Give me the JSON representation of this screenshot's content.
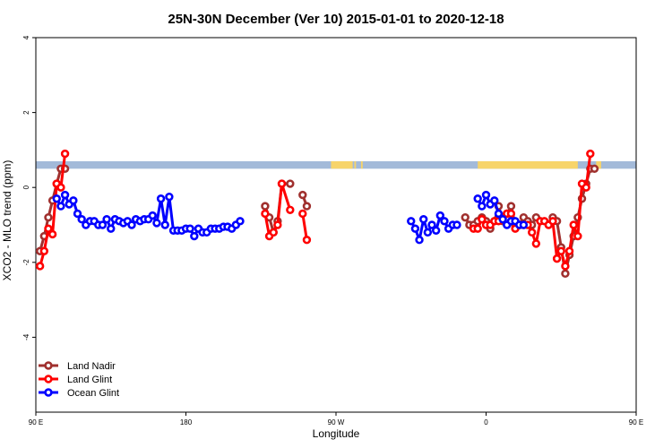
{
  "chart_data": {
    "type": "line",
    "title": "25N-30N December (Ver 10)   2015-01-01 to 2020-12-18",
    "xlabel": "Longitude",
    "ylabel": "XCO2 - MLO trend (ppm)",
    "xlim": [
      90,
      450
    ],
    "ylim": [
      -6,
      4
    ],
    "x_ticks": [
      {
        "value": 90,
        "label": "90 E"
      },
      {
        "value": 180,
        "label": "180"
      },
      {
        "value": 270,
        "label": "90 W"
      },
      {
        "value": 360,
        "label": "0"
      },
      {
        "value": 450,
        "label": "90 E"
      },
      {
        "value": 540,
        "label": "180"
      }
    ],
    "y_ticks": [
      {
        "value": -4,
        "label": "-4"
      },
      {
        "value": -2,
        "label": "-2"
      },
      {
        "value": 0,
        "label": "0"
      },
      {
        "value": 2,
        "label": "2"
      },
      {
        "value": 4,
        "label": "4"
      }
    ],
    "grid": false,
    "legend_position": "bottom-left",
    "land_band": {
      "y_range": [
        0.5,
        0.7
      ],
      "ocean_color": "#a3bad9",
      "land_color": "#f7d46a",
      "land_segments": [
        [
          267,
          280
        ],
        [
          281,
          282
        ],
        [
          285,
          286
        ],
        [
          355,
          415
        ],
        [
          426,
          429
        ],
        [
          450,
          452
        ]
      ]
    },
    "series": [
      {
        "name": "Land Nadir",
        "color": "#a0302e",
        "points": [
          [
            92.5,
            -1.7
          ],
          [
            95,
            -1.3
          ],
          [
            97.5,
            -0.8
          ],
          [
            100,
            -0.35
          ],
          [
            102.5,
            0.1
          ],
          [
            105,
            0.5
          ],
          [
            107.5,
            0.5
          ],
          null,
          [
            227.5,
            -0.5
          ],
          [
            230,
            -0.8
          ],
          [
            232.5,
            -1.2
          ],
          [
            235,
            -0.9
          ],
          [
            237.5,
            0.1
          ],
          [
            242.5,
            0.1
          ],
          null,
          [
            250,
            -0.2
          ],
          [
            252.5,
            -0.5
          ],
          null,
          [
            347.5,
            -0.8
          ],
          [
            350,
            -1.0
          ],
          [
            352.5,
            -1.0
          ],
          [
            355,
            -0.9
          ],
          [
            357.5,
            -0.8
          ],
          [
            360,
            -0.9
          ],
          [
            362.5,
            -1.1
          ],
          [
            365,
            -0.9
          ],
          [
            367.5,
            -0.5
          ],
          [
            370,
            -0.9
          ],
          [
            372.5,
            -0.7
          ],
          [
            375,
            -0.5
          ],
          [
            377.5,
            -1.0
          ],
          [
            380,
            -1.0
          ],
          [
            382.5,
            -0.8
          ],
          [
            385,
            -0.9
          ],
          [
            387.5,
            -1.0
          ],
          [
            390,
            -0.8
          ],
          null,
          [
            400,
            -0.8
          ],
          [
            402.5,
            -0.9
          ],
          [
            405,
            -1.6
          ],
          [
            407.5,
            -2.3
          ],
          [
            410,
            -1.8
          ],
          [
            412.5,
            -1.3
          ],
          [
            415,
            -0.8
          ],
          [
            417.5,
            -0.3
          ],
          [
            420,
            0.1
          ],
          [
            422.5,
            0.5
          ],
          [
            425,
            0.5
          ]
        ]
      },
      {
        "name": "Land Glint",
        "color": "#ff0000",
        "points": [
          [
            92.5,
            -2.1
          ],
          [
            95,
            -1.7
          ],
          [
            97.5,
            -1.1
          ],
          [
            100,
            -1.25
          ],
          [
            102.5,
            0.1
          ],
          [
            105,
            0.0
          ],
          [
            107.5,
            0.9
          ],
          null,
          [
            227.5,
            -0.7
          ],
          [
            230,
            -1.3
          ],
          [
            232.5,
            -1.2
          ],
          [
            235,
            -1.0
          ],
          [
            237.5,
            0.1
          ],
          [
            242.5,
            -0.6
          ],
          null,
          [
            250,
            -0.7
          ],
          [
            252.5,
            -1.4
          ],
          null,
          [
            352.5,
            -1.1
          ],
          [
            355,
            -1.1
          ],
          [
            357.5,
            -0.85
          ],
          [
            360,
            -1.0
          ],
          [
            362.5,
            -1.0
          ],
          [
            365,
            -0.9
          ],
          [
            367.5,
            -0.9
          ],
          [
            370,
            -0.8
          ],
          [
            372.5,
            -0.7
          ],
          [
            375,
            -0.7
          ],
          [
            377.5,
            -1.1
          ],
          [
            380,
            -1.0
          ],
          [
            382.5,
            -1.0
          ],
          [
            385,
            -1.0
          ],
          [
            387.5,
            -1.2
          ],
          [
            390,
            -1.5
          ],
          [
            392.5,
            -0.9
          ],
          [
            395,
            -0.9
          ],
          [
            397.5,
            -1.0
          ],
          [
            400,
            -0.9
          ],
          [
            402.5,
            -1.9
          ],
          [
            405,
            -1.7
          ],
          [
            407.5,
            -2.1
          ],
          [
            410,
            -1.7
          ],
          [
            412.5,
            -1.0
          ],
          [
            415,
            -1.3
          ],
          [
            417.5,
            0.1
          ],
          [
            420,
            0.0
          ],
          [
            422.5,
            0.9
          ]
        ]
      },
      {
        "name": "Ocean Glint",
        "color": "#0000ff",
        "points": [
          [
            102.5,
            -0.3
          ],
          [
            105,
            -0.5
          ],
          [
            107.5,
            -0.2
          ],
          [
            110,
            -0.45
          ],
          [
            112.5,
            -0.35
          ],
          [
            115,
            -0.7
          ],
          [
            117.5,
            -0.85
          ],
          [
            120,
            -1.0
          ],
          [
            122.5,
            -0.9
          ],
          [
            125,
            -0.9
          ],
          [
            127.5,
            -1.0
          ],
          [
            130,
            -1.0
          ],
          [
            132.5,
            -0.85
          ],
          [
            135,
            -1.1
          ],
          [
            137.5,
            -0.85
          ],
          [
            140,
            -0.9
          ],
          [
            142.5,
            -0.95
          ],
          [
            145,
            -0.9
          ],
          [
            147.5,
            -1.0
          ],
          [
            150,
            -0.85
          ],
          [
            152.5,
            -0.9
          ],
          [
            155,
            -0.85
          ],
          [
            157.5,
            -0.85
          ],
          [
            160,
            -0.75
          ],
          [
            162.5,
            -0.95
          ],
          [
            165,
            -0.3
          ],
          [
            167.5,
            -1.0
          ],
          [
            170,
            -0.25
          ],
          [
            172.5,
            -1.15
          ],
          [
            175,
            -1.15
          ],
          [
            177.5,
            -1.15
          ],
          [
            180,
            -1.1
          ],
          [
            182.5,
            -1.1
          ],
          [
            185,
            -1.3
          ],
          [
            187.5,
            -1.1
          ],
          [
            190,
            -1.2
          ],
          [
            192.5,
            -1.2
          ],
          [
            195,
            -1.1
          ],
          [
            197.5,
            -1.1
          ],
          [
            200,
            -1.1
          ],
          [
            202.5,
            -1.05
          ],
          [
            205,
            -1.05
          ],
          [
            207.5,
            -1.1
          ],
          [
            210,
            -1.0
          ],
          [
            212.5,
            -0.9
          ],
          null,
          [
            315,
            -0.9
          ],
          [
            317.5,
            -1.1
          ],
          [
            320,
            -1.4
          ],
          [
            322.5,
            -0.85
          ],
          [
            325,
            -1.2
          ],
          [
            327.5,
            -1.0
          ],
          [
            330,
            -1.15
          ],
          [
            332.5,
            -0.75
          ],
          [
            335,
            -0.9
          ],
          [
            337.5,
            -1.1
          ],
          [
            340,
            -1.0
          ],
          [
            342.5,
            -1.0
          ],
          null,
          [
            355,
            -0.3
          ],
          [
            357.5,
            -0.5
          ],
          [
            360,
            -0.2
          ],
          [
            362.5,
            -0.45
          ],
          [
            365,
            -0.35
          ],
          [
            367.5,
            -0.7
          ],
          [
            370,
            -0.85
          ],
          [
            372.5,
            -1.0
          ],
          [
            375,
            -0.9
          ],
          [
            377.5,
            -0.9
          ],
          [
            380,
            -1.0
          ],
          [
            382.5,
            -1.0
          ]
        ]
      }
    ]
  }
}
